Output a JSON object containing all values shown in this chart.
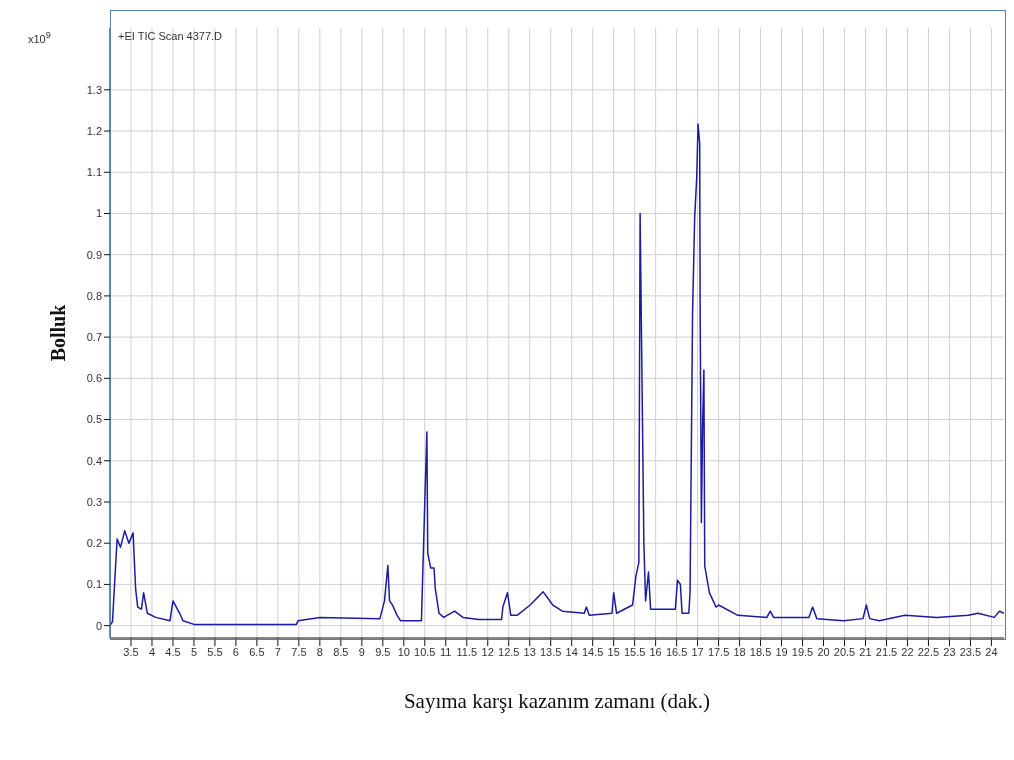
{
  "chart_data": {
    "type": "line",
    "xlabel": "Sayıma karşı kazanım zamanı (dak.)",
    "ylabel": "Bolluk",
    "annotations": [
      "x10$^{9}$",
      "+EI TIC Scan 4377.D"
    ],
    "x": [
      3.0,
      3.06,
      3.13,
      3.17,
      3.25,
      3.35,
      3.45,
      3.55,
      3.61,
      3.66,
      3.75,
      3.8,
      3.89,
      4.09,
      4.43,
      4.5,
      4.66,
      4.74,
      5.0,
      7.44,
      7.48,
      8.0,
      9.43,
      9.54,
      9.62,
      9.66,
      9.73,
      9.84,
      9.92,
      10.42,
      10.5,
      10.55,
      10.57,
      10.64,
      10.72,
      10.75,
      10.84,
      10.95,
      11.21,
      11.41,
      11.79,
      12.33,
      12.36,
      12.47,
      12.55,
      12.7,
      13.01,
      13.32,
      13.55,
      13.78,
      14.3,
      14.35,
      14.42,
      14.96,
      15.0,
      15.07,
      15.45,
      15.53,
      15.6,
      15.63,
      15.72,
      15.76,
      15.83,
      15.88,
      16.18,
      16.47,
      16.52,
      16.59,
      16.63,
      16.79,
      16.82,
      16.88,
      16.93,
      16.98,
      17.01,
      17.05,
      17.06,
      17.09,
      17.12,
      17.15,
      17.17,
      17.28,
      17.44,
      17.5,
      17.96,
      18.65,
      18.73,
      18.81,
      19.65,
      19.74,
      19.84,
      20.48,
      20.94,
      21.02,
      21.1,
      21.33,
      21.94,
      22.7,
      23.45,
      23.68,
      24.07,
      24.19,
      24.3
    ],
    "series": [
      {
        "color": "#1c1c9e",
        "values": [
          0.0,
          0.01,
          0.14,
          0.21,
          0.19,
          0.23,
          0.2,
          0.225,
          0.09,
          0.045,
          0.04,
          0.08,
          0.03,
          0.02,
          0.012,
          0.06,
          0.03,
          0.012,
          0.003,
          0.003,
          0.012,
          0.02,
          0.017,
          0.06,
          0.146,
          0.06,
          0.05,
          0.025,
          0.012,
          0.012,
          0.3,
          0.47,
          0.176,
          0.14,
          0.14,
          0.09,
          0.03,
          0.02,
          0.035,
          0.02,
          0.015,
          0.015,
          0.045,
          0.08,
          0.025,
          0.025,
          0.05,
          0.082,
          0.05,
          0.035,
          0.03,
          0.045,
          0.025,
          0.03,
          0.08,
          0.03,
          0.05,
          0.12,
          0.153,
          1.0,
          0.2,
          0.06,
          0.13,
          0.04,
          0.04,
          0.04,
          0.11,
          0.1,
          0.03,
          0.03,
          0.08,
          0.76,
          0.99,
          1.09,
          1.217,
          1.17,
          0.78,
          0.25,
          0.49,
          0.62,
          0.145,
          0.08,
          0.045,
          0.05,
          0.025,
          0.02,
          0.035,
          0.02,
          0.02,
          0.045,
          0.017,
          0.012,
          0.017,
          0.05,
          0.017,
          0.012,
          0.025,
          0.02,
          0.025,
          0.03,
          0.02,
          0.035,
          0.03
        ]
      }
    ],
    "xlim": [
      3.0,
      24.3
    ],
    "ylim": [
      -0.03,
      1.45
    ],
    "xticks": [
      3.5,
      4,
      4.5,
      5,
      5.5,
      6,
      6.5,
      7,
      7.5,
      8,
      8.5,
      9,
      9.5,
      10,
      10.5,
      11,
      11.5,
      12,
      12.5,
      13,
      13.5,
      14,
      14.5,
      15,
      15.5,
      16,
      16.5,
      17,
      17.5,
      18,
      18.5,
      19,
      19.5,
      20,
      20.5,
      21,
      21.5,
      22,
      22.5,
      23,
      23.5,
      24
    ],
    "yticks": [
      0,
      0.1,
      0.2,
      0.3,
      0.4,
      0.5,
      0.6,
      0.7,
      0.8,
      0.9,
      1,
      1.1,
      1.2,
      1.3
    ],
    "grid": true,
    "legend": false,
    "marker": "none",
    "line_style": "solid"
  }
}
